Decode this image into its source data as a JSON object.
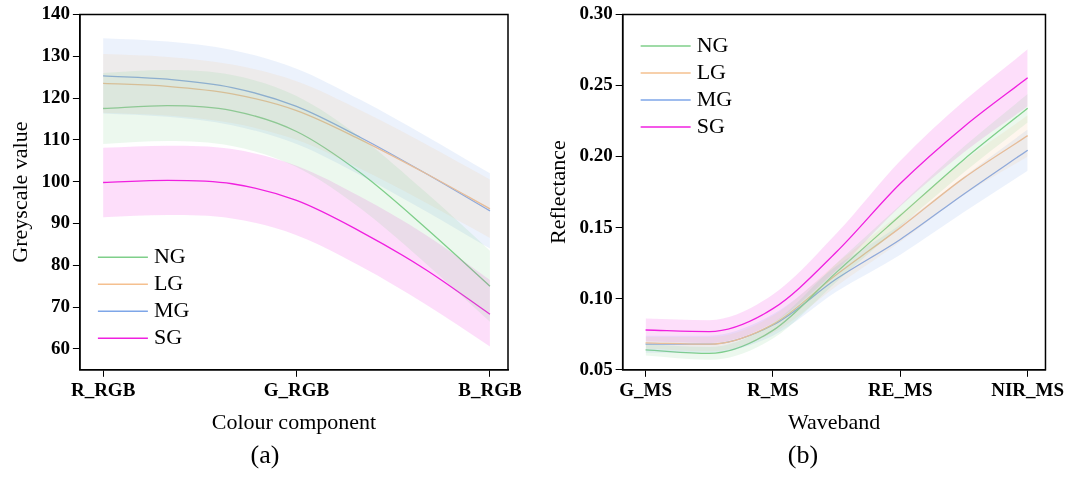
{
  "chart_data": [
    {
      "type": "line",
      "xlabel": "Colour component",
      "ylabel": "Greyscale value",
      "categories": [
        "R_RGB",
        null,
        null,
        "G_RGB",
        null,
        null,
        "B_RGB"
      ],
      "ylim": [
        55,
        140
      ],
      "yticks": [
        60,
        70,
        80,
        90,
        100,
        110,
        120,
        130,
        140
      ],
      "legend": "bottom left",
      "annotations": [
        "(a)"
      ],
      "series": [
        {
          "name": "NG",
          "color": "#7fcf8a",
          "values": [
            117.5,
            118.2,
            117,
            112,
            102,
            89,
            75
          ],
          "lower": [
            109,
            109.7,
            108.5,
            103.5,
            93.5,
            80.5,
            66.5
          ],
          "upper": [
            126,
            126.7,
            125.5,
            120.5,
            110.5,
            97.5,
            83.5
          ]
        },
        {
          "name": "LG",
          "color": "#f5c08f",
          "values": [
            123.5,
            122.8,
            121,
            117,
            110,
            102,
            93.5
          ],
          "lower": [
            116.5,
            115.8,
            114,
            110,
            103,
            95,
            86.5
          ],
          "upper": [
            130.5,
            129.8,
            128,
            124,
            117,
            109,
            100.5
          ]
        },
        {
          "name": "MG",
          "color": "#7ea6e8",
          "values": [
            125.3,
            124.5,
            122.5,
            118,
            110.5,
            102,
            93
          ],
          "lower": [
            116.3,
            115.5,
            113.5,
            109,
            101.5,
            93,
            84
          ],
          "upper": [
            134.3,
            133.5,
            131.5,
            127,
            119.5,
            111,
            102
          ]
        },
        {
          "name": "SG",
          "color": "#f020e0",
          "values": [
            99.8,
            100.3,
            99.5,
            95.5,
            88,
            79,
            68.3
          ],
          "lower": [
            91.5,
            92,
            91.2,
            87.2,
            79.7,
            70.7,
            60.6
          ],
          "upper": [
            108.1,
            108.6,
            107.8,
            103.8,
            96.3,
            87.3,
            76.5
          ]
        }
      ]
    },
    {
      "type": "line",
      "xlabel": "Waveband",
      "ylabel": "Reflectance",
      "categories": [
        "G_MS",
        null,
        "R_MS",
        null,
        "RE_MS",
        null,
        "NIR_MS"
      ],
      "ylim": [
        0.05,
        0.3
      ],
      "yticks": [
        {
          "value": 0.05,
          "label": "0.05"
        },
        {
          "value": 0.1,
          "label": "0.10"
        },
        {
          "value": 0.15,
          "label": "0.15"
        },
        {
          "value": 0.2,
          "label": "0.20"
        },
        {
          "value": 0.25,
          "label": "0.25"
        },
        {
          "value": 0.3,
          "label": "0.30"
        }
      ],
      "legend": "top left",
      "annotations": [
        "(b)"
      ],
      "series": [
        {
          "name": "NG",
          "color": "#7fcf8a",
          "values": [
            0.064,
            0.0615,
            0.0777,
            0.1187,
            0.1585,
            0.198,
            0.234
          ],
          "lower": [
            0.06,
            0.057,
            0.072,
            0.112,
            0.151,
            0.189,
            0.224
          ],
          "upper": [
            0.068,
            0.066,
            0.083,
            0.125,
            0.166,
            0.207,
            0.244
          ]
        },
        {
          "name": "LG",
          "color": "#f5c08f",
          "values": [
            0.069,
            0.068,
            0.082,
            0.117,
            0.15,
            0.185,
            0.2147
          ],
          "lower": [
            0.065,
            0.063,
            0.076,
            0.109,
            0.14,
            0.173,
            0.2
          ],
          "upper": [
            0.073,
            0.073,
            0.088,
            0.125,
            0.16,
            0.197,
            0.229
          ]
        },
        {
          "name": "MG",
          "color": "#7ea6e8",
          "values": [
            0.068,
            0.068,
            0.0815,
            0.114,
            0.1417,
            0.1737,
            0.2045
          ],
          "lower": [
            0.062,
            0.062,
            0.074,
            0.105,
            0.131,
            0.161,
            0.19
          ],
          "upper": [
            0.074,
            0.074,
            0.089,
            0.123,
            0.152,
            0.186,
            0.219
          ]
        },
        {
          "name": "SG",
          "color": "#f020e0",
          "values": [
            0.078,
            0.0769,
            0.093,
            0.133,
            0.181,
            0.221,
            0.2554
          ],
          "lower": [
            0.07,
            0.0689,
            0.083,
            0.12,
            0.165,
            0.203,
            0.2354
          ],
          "upper": [
            0.086,
            0.0849,
            0.103,
            0.146,
            0.197,
            0.239,
            0.2754
          ]
        }
      ]
    }
  ]
}
